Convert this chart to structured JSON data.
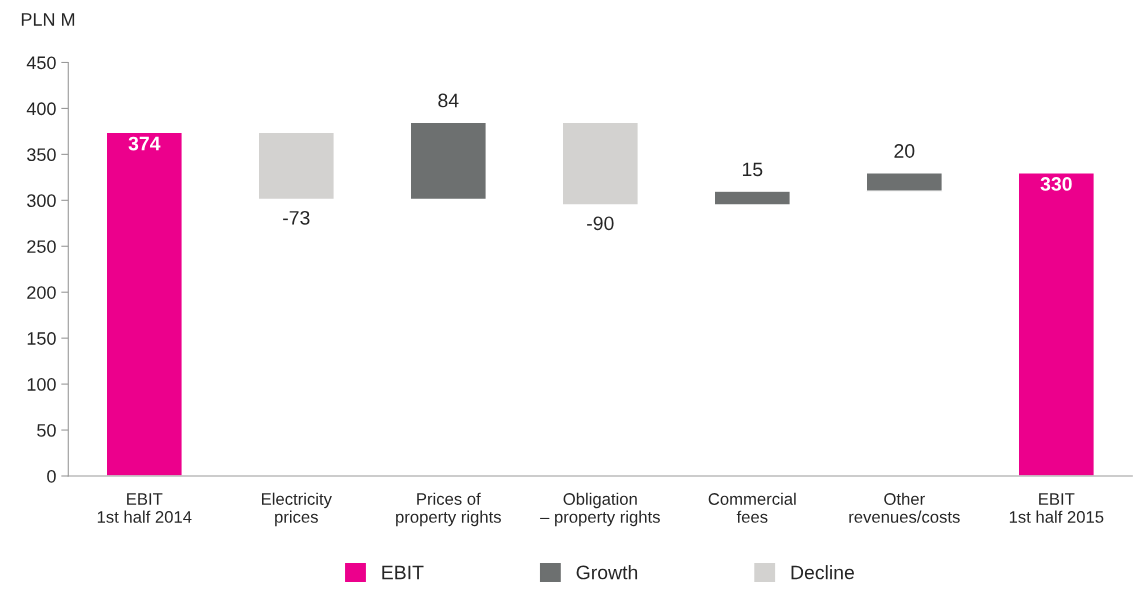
{
  "chart_data": {
    "type": "bar",
    "ylabel": "PLN M",
    "categories": [
      "EBIT\n1st half 2014",
      "Electricity\nprices",
      "Prices of\nproperty rights",
      "Obligation\n– property rights",
      "Commercial\nfees",
      "Other\nrevenues/costs",
      "EBIT\n1st half 2015"
    ],
    "series": [
      {
        "name": "EBIT",
        "color": "#ec008c",
        "values": [
          374,
          null,
          null,
          null,
          null,
          null,
          330
        ],
        "base": [
          0,
          null,
          null,
          null,
          null,
          null,
          0
        ]
      },
      {
        "name": "Growth",
        "color": "#6d7070",
        "values": [
          null,
          null,
          84,
          null,
          15,
          20,
          null
        ],
        "base": [
          null,
          null,
          301,
          null,
          295,
          310,
          null
        ]
      },
      {
        "name": "Decline",
        "color": "#d3d2d0",
        "values": [
          null,
          -73,
          null,
          -90,
          null,
          null,
          null
        ],
        "base": [
          null,
          374,
          null,
          385,
          null,
          null,
          null
        ]
      }
    ],
    "ylim": [
      0,
      450
    ],
    "yticks": [
      0,
      50,
      100,
      150,
      200,
      250,
      300,
      350,
      400,
      450
    ],
    "data_labels": true,
    "grid": false,
    "legend": "bottom"
  }
}
